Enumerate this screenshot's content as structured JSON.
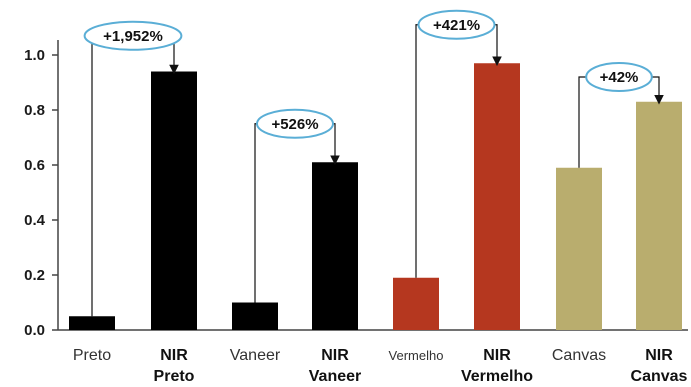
{
  "chart_data": {
    "type": "bar",
    "title": "",
    "xlabel": "",
    "ylabel": "",
    "ylim": [
      0,
      1.15
    ],
    "yticks": [
      "0.0",
      "0.2",
      "0.4",
      "0.6",
      "0.8",
      "1.0"
    ],
    "grid": false,
    "legend": "none",
    "categories": [
      {
        "lines": [
          "Preto"
        ],
        "bold": false
      },
      {
        "lines": [
          "NIR",
          "Preto"
        ],
        "bold": true
      },
      {
        "lines": [
          "Vaneer"
        ],
        "bold": false
      },
      {
        "lines": [
          "NIR",
          "Vaneer"
        ],
        "bold": true
      },
      {
        "lines": [
          "Vermelho"
        ],
        "bold": false,
        "small": true
      },
      {
        "lines": [
          "NIR",
          "Vermelho"
        ],
        "bold": true
      },
      {
        "lines": [
          "Canvas"
        ],
        "bold": false
      },
      {
        "lines": [
          "NIR",
          "Canvas"
        ],
        "bold": true
      }
    ],
    "values": [
      0.05,
      0.94,
      0.1,
      0.61,
      0.19,
      0.97,
      0.59,
      0.83
    ],
    "colors": [
      "#000000",
      "#000000",
      "#000000",
      "#000000",
      "#b5371f",
      "#b5371f",
      "#b9ad6e",
      "#b9ad6e"
    ],
    "annotations": [
      {
        "label": "+1,952%",
        "from": 0,
        "to": 1,
        "level": 1.07
      },
      {
        "label": "+526%",
        "from": 2,
        "to": 3,
        "level": 0.75
      },
      {
        "label": "+421%",
        "from": 4,
        "to": 5,
        "level": 1.11
      },
      {
        "label": "+42%",
        "from": 6,
        "to": 7,
        "level": 0.92
      }
    ],
    "annotation_border_color": "#5aaed6"
  }
}
